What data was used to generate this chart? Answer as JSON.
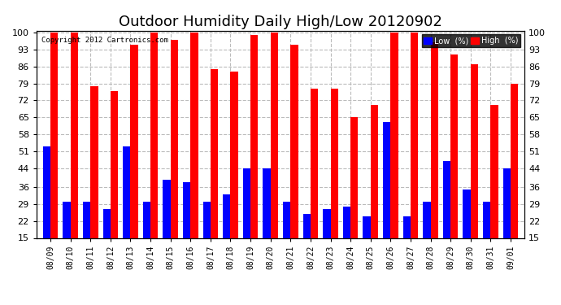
{
  "title": "Outdoor Humidity Daily High/Low 20120902",
  "copyright": "Copyright 2012 Cartronics.com",
  "dates": [
    "08/09",
    "08/10",
    "08/11",
    "08/12",
    "08/13",
    "08/14",
    "08/15",
    "08/16",
    "08/17",
    "08/18",
    "08/19",
    "08/20",
    "08/21",
    "08/22",
    "08/23",
    "08/24",
    "08/25",
    "08/26",
    "08/27",
    "08/28",
    "08/29",
    "08/30",
    "08/31",
    "09/01"
  ],
  "high": [
    100,
    100,
    78,
    76,
    95,
    100,
    97,
    100,
    85,
    84,
    99,
    100,
    95,
    77,
    77,
    65,
    70,
    100,
    100,
    96,
    91,
    87,
    70,
    79
  ],
  "low": [
    53,
    30,
    30,
    27,
    53,
    30,
    39,
    38,
    30,
    33,
    44,
    44,
    30,
    25,
    27,
    28,
    24,
    63,
    24,
    30,
    47,
    35,
    30,
    44
  ],
  "y_ticks": [
    15,
    22,
    29,
    36,
    44,
    51,
    58,
    65,
    72,
    79,
    86,
    93,
    100
  ],
  "ylim": [
    15,
    101
  ],
  "bar_bottom": 15,
  "bg_color": "#ffffff",
  "bar_color_low": "#0000ff",
  "bar_color_high": "#ff0000",
  "grid_color": "#bbbbbb",
  "title_fontsize": 13,
  "bar_width": 0.38,
  "legend_label_low": "Low  (%)",
  "legend_label_high": "High  (%)"
}
